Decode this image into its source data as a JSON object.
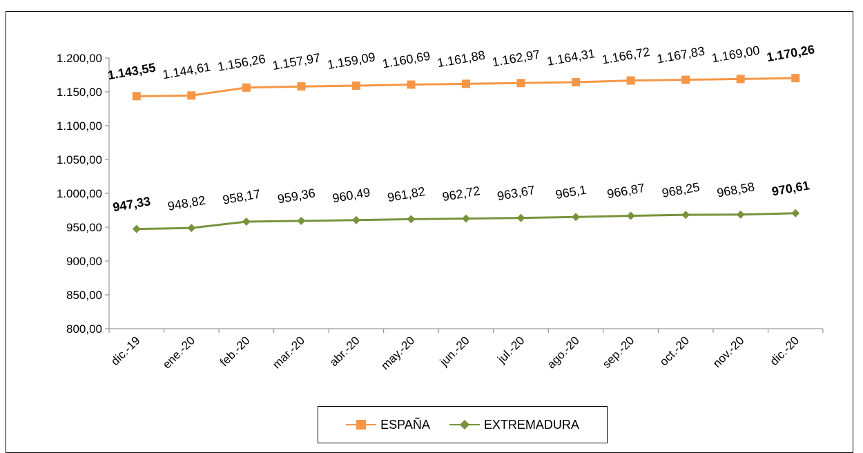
{
  "chart_data": {
    "type": "line",
    "categories": [
      "dic.-19",
      "ene.-20",
      "feb.-20",
      "mar.-20",
      "abr.-20",
      "may.-20",
      "jun.-20",
      "jul.-20",
      "ago.-20",
      "sep.-20",
      "oct.-20",
      "nov.-20",
      "dic.-20"
    ],
    "ylim": [
      800,
      1200
    ],
    "yticks": [
      "1.200,00",
      "1.150,00",
      "1.100,00",
      "1.050,00",
      "1.000,00",
      "950,00",
      "900,00",
      "850,00",
      "800,00"
    ],
    "ytick_values": [
      1200,
      1150,
      1100,
      1050,
      1000,
      950,
      900,
      850,
      800
    ],
    "grid": false,
    "legend_position": "bottom",
    "series": [
      {
        "name": "ESPAÑA",
        "color": "#F79646",
        "marker": "square",
        "values": [
          1143.55,
          1144.61,
          1156.26,
          1157.97,
          1159.09,
          1160.69,
          1161.88,
          1162.97,
          1164.31,
          1166.72,
          1167.83,
          1169.0,
          1170.26
        ],
        "labels": [
          "1.143,55",
          "1.144,61",
          "1.156,26",
          "1.157,97",
          "1.159,09",
          "1.160,69",
          "1.161,88",
          "1.162,97",
          "1.164,31",
          "1.166,72",
          "1.167,83",
          "1.169,00",
          "1.170,26"
        ]
      },
      {
        "name": "EXTREMADURA",
        "color": "#77933C",
        "marker": "diamond",
        "values": [
          947.33,
          948.82,
          958.17,
          959.36,
          960.49,
          961.82,
          962.72,
          963.67,
          965.1,
          966.87,
          968.25,
          968.58,
          970.61
        ],
        "labels": [
          "947,33",
          "948,82",
          "958,17",
          "959,36",
          "960,49",
          "961,82",
          "962,72",
          "963,67",
          "965,1",
          "966,87",
          "968,25",
          "968,58",
          "970,61"
        ]
      }
    ]
  }
}
